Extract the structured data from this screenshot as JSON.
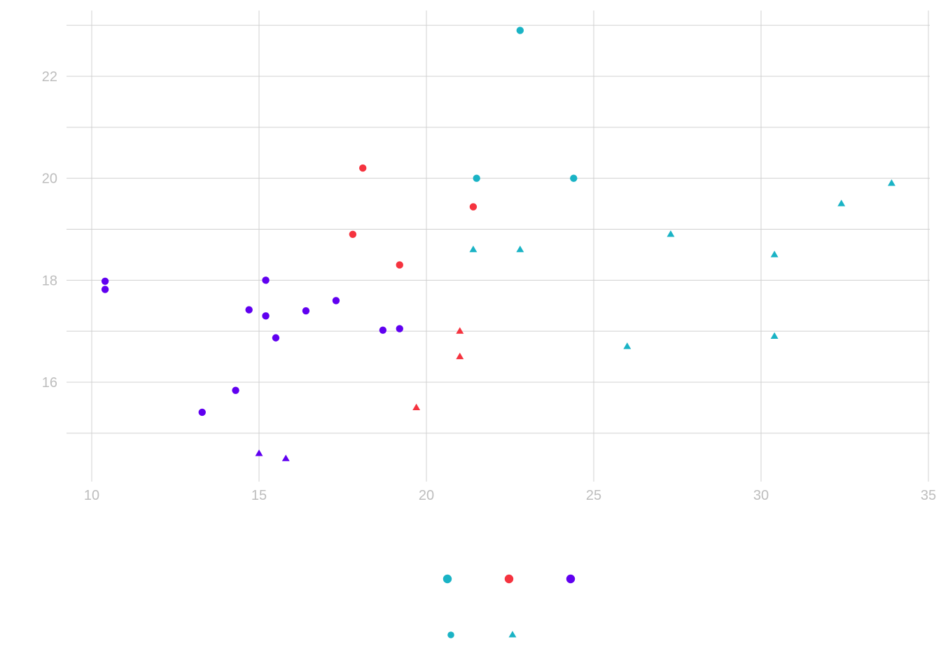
{
  "chart_data": {
    "type": "scatter",
    "title": "",
    "xlabel": "",
    "ylabel": "",
    "xlim": [
      9.25,
      35
    ],
    "ylim": [
      14.1,
      23.4
    ],
    "x_ticks": [
      10,
      15,
      20,
      25,
      30,
      35
    ],
    "y_ticks": [
      16,
      18,
      20,
      22
    ],
    "x_tick_labels": [
      "10",
      "15",
      "20",
      "25",
      "30",
      "35"
    ],
    "y_tick_labels": [
      "16",
      "18",
      "20",
      "22"
    ],
    "grid": true,
    "legend_position": "bottom",
    "colors": {
      "cyan": "#1ab3c5",
      "red": "#f5333f",
      "purple": "#6000f0"
    },
    "series": [
      {
        "color": "#1ab3c5",
        "shape": "circle",
        "points": [
          [
            21.5,
            20.0
          ],
          [
            22.8,
            22.9
          ],
          [
            24.4,
            20.0
          ]
        ]
      },
      {
        "color": "#1ab3c5",
        "shape": "triangle",
        "points": [
          [
            21.4,
            18.6
          ],
          [
            22.8,
            18.6
          ],
          [
            26.0,
            16.7
          ],
          [
            27.3,
            18.9
          ],
          [
            30.4,
            18.5
          ],
          [
            30.4,
            16.9
          ],
          [
            32.4,
            19.5
          ],
          [
            33.9,
            19.9
          ]
        ]
      },
      {
        "color": "#f5333f",
        "shape": "circle",
        "points": [
          [
            18.1,
            20.2
          ],
          [
            17.8,
            18.9
          ],
          [
            19.2,
            18.3
          ],
          [
            21.4,
            19.44
          ]
        ]
      },
      {
        "color": "#f5333f",
        "shape": "triangle",
        "points": [
          [
            21.0,
            17.0
          ],
          [
            21.0,
            16.5
          ],
          [
            19.7,
            15.5
          ]
        ]
      },
      {
        "color": "#6000f0",
        "shape": "circle",
        "points": [
          [
            10.4,
            17.98
          ],
          [
            10.4,
            17.82
          ],
          [
            13.3,
            15.41
          ],
          [
            14.3,
            15.84
          ],
          [
            14.7,
            17.42
          ],
          [
            15.2,
            18.0
          ],
          [
            15.2,
            17.3
          ],
          [
            15.5,
            16.87
          ],
          [
            16.4,
            17.4
          ],
          [
            17.3,
            17.6
          ],
          [
            18.7,
            17.02
          ],
          [
            19.2,
            17.05
          ]
        ]
      },
      {
        "color": "#6000f0",
        "shape": "triangle",
        "points": [
          [
            15.0,
            14.6
          ],
          [
            15.8,
            14.5
          ]
        ]
      }
    ],
    "legend": {
      "color_keys": [
        {
          "color": "#1ab3c5",
          "shape": "circle"
        },
        {
          "color": "#f5333f",
          "shape": "circle"
        },
        {
          "color": "#6000f0",
          "shape": "circle"
        }
      ],
      "shape_keys": [
        {
          "color": "#1ab3c5",
          "shape": "circle"
        },
        {
          "color": "#1ab3c5",
          "shape": "triangle"
        }
      ]
    }
  }
}
